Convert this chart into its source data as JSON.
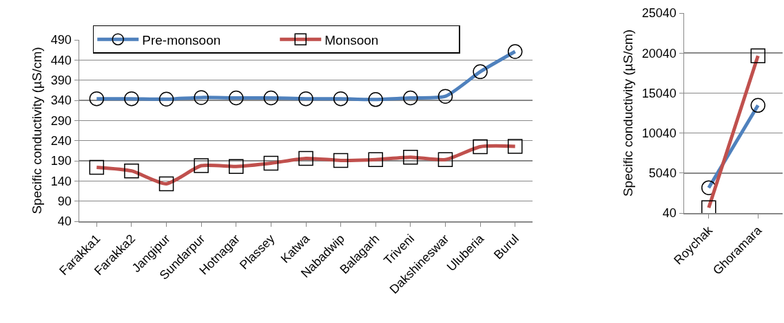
{
  "chart_data": [
    {
      "type": "line",
      "ylabel": "Specific conductivity (µS/cm)",
      "categories": [
        "Farakka1",
        "Farakka2",
        "Jangipur",
        "Sundarpur",
        "Hotnagar",
        "Plassey",
        "Katwa",
        "Nabadwip",
        "Balagarh",
        "Triveni",
        "Dakshineswar",
        "Uluberia",
        "Burul"
      ],
      "series": [
        {
          "name": "Pre-monsoon",
          "color": "#4f81bd",
          "marker": "circle",
          "values": [
            344,
            344,
            343,
            347,
            346,
            346,
            344,
            344,
            342,
            346,
            350,
            411,
            461
          ]
        },
        {
          "name": "Monsoon",
          "color": "#c0504d",
          "marker": "square",
          "values": [
            174,
            165,
            133,
            178,
            176,
            184,
            196,
            191,
            193,
            199,
            193,
            225,
            226
          ]
        }
      ],
      "ylim": [
        40,
        490
      ],
      "yticks": [
        40,
        90,
        140,
        190,
        240,
        290,
        340,
        390,
        440,
        490
      ],
      "grid": "y",
      "legend": "top left",
      "line_style": "solid"
    },
    {
      "type": "line",
      "ylabel": "Specific conductivity (µS/cm)",
      "categories": [
        "Roychak",
        "Ghoramara"
      ],
      "series": [
        {
          "color": "#4f81bd",
          "marker": "circle",
          "values": [
            3200,
            13500
          ]
        },
        {
          "color": "#c0504d",
          "marker": "square",
          "values": [
            700,
            19700
          ]
        }
      ],
      "ylim": [
        40,
        25040
      ],
      "yticks": [
        40,
        5040,
        10040,
        15040,
        20040,
        25040
      ],
      "grid": "y",
      "line_style": "solid"
    }
  ]
}
